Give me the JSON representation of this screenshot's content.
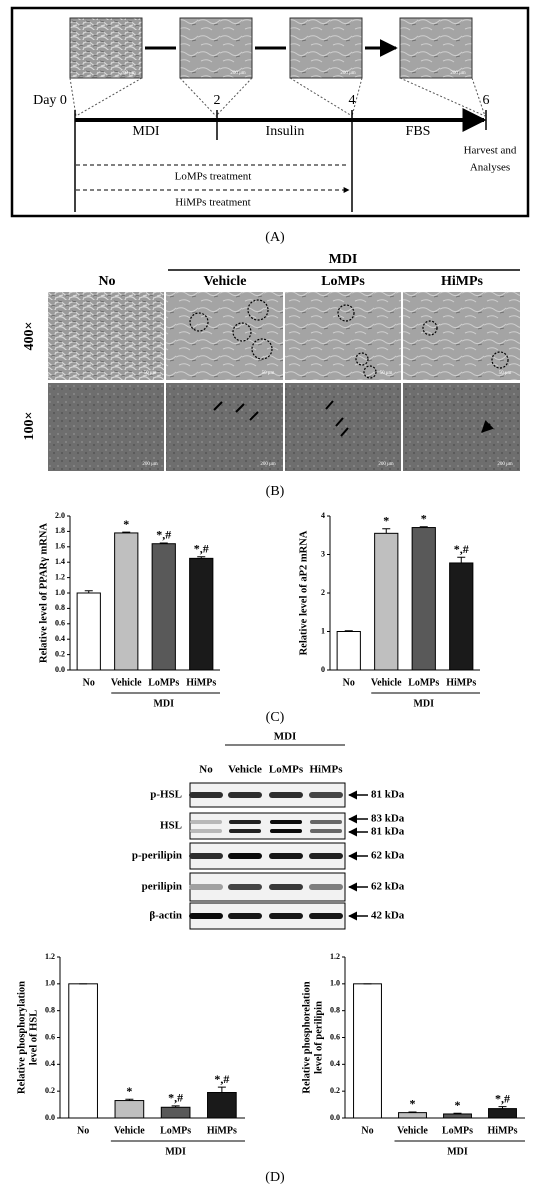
{
  "panel_a": {
    "label": "(A)",
    "day_labels": [
      "Day 0",
      "2",
      "4",
      "6"
    ],
    "phases": [
      "MDI",
      "Insulin",
      "FBS"
    ],
    "harvest": [
      "Harvest and",
      "Analyses"
    ],
    "treatments": [
      "LoMPs treatment",
      "HiMPs treatment"
    ],
    "scale_bar": "200 μm"
  },
  "panel_b": {
    "label": "(B)",
    "group": "MDI",
    "columns": [
      "No",
      "Vehicle",
      "LoMPs",
      "HiMPs"
    ],
    "rows": [
      "400×",
      "100×"
    ],
    "scale_bars": [
      "50 μm",
      "200 μm"
    ]
  },
  "panel_c": {
    "label": "(C)"
  },
  "panel_d": {
    "label": "(D)",
    "group": "MDI",
    "lanes": [
      "No",
      "Vehicle",
      "LoMPs",
      "HiMPs"
    ],
    "proteins": [
      "p-HSL",
      "HSL",
      "p-perilipin",
      "perilipin",
      "β-actin"
    ],
    "sizes": [
      [
        "81 kDa"
      ],
      [
        "83 kDa",
        "81 kDa"
      ],
      [
        "62 kDa"
      ],
      [
        "62 kDa"
      ],
      [
        "42 kDa"
      ]
    ]
  },
  "chart_data": [
    {
      "type": "bar",
      "ylabel": [
        "Relative level of PPARγ mRNA"
      ],
      "categories": [
        "No",
        "Vehicle",
        "LoMPs",
        "HiMPs"
      ],
      "group_label": "MDI",
      "values": [
        1.0,
        1.78,
        1.64,
        1.45
      ],
      "errors": [
        0.03,
        0.01,
        0.01,
        0.02
      ],
      "annotations": [
        null,
        "*",
        "*,#",
        "*,#"
      ],
      "colors": [
        "#ffffff",
        "#bfbfbf",
        "#595959",
        "#1a1a1a"
      ],
      "ylim": [
        0,
        2.0
      ],
      "yticks": [
        {
          "value": 0,
          "label": "0.0"
        },
        0.2,
        0.4,
        0.6,
        0.8,
        {
          "value": 1.0,
          "label": "1.0"
        },
        1.2,
        1.4,
        1.6,
        1.8,
        {
          "value": 2.0,
          "label": "2.0"
        }
      ]
    },
    {
      "type": "bar",
      "ylabel": [
        "Relative level of aP2 mRNA"
      ],
      "categories": [
        "No",
        "Vehicle",
        "LoMPs",
        "HiMPs"
      ],
      "group_label": "MDI",
      "values": [
        1.0,
        3.55,
        3.7,
        2.78
      ],
      "errors": [
        0.02,
        0.12,
        0.02,
        0.15
      ],
      "annotations": [
        null,
        "*",
        "*",
        "*,#"
      ],
      "colors": [
        "#ffffff",
        "#bfbfbf",
        "#595959",
        "#1a1a1a"
      ],
      "ylim": [
        0,
        4
      ],
      "yticks": [
        0,
        1,
        2,
        3,
        4
      ]
    },
    {
      "type": "bar",
      "ylabel": [
        "Relative phosphorylation",
        "level of HSL"
      ],
      "categories": [
        "No",
        "Vehicle",
        "LoMPs",
        "HiMPs"
      ],
      "group_label": "MDI",
      "values": [
        1.0,
        0.13,
        0.08,
        0.19
      ],
      "errors": [
        0,
        0.01,
        0.01,
        0.04
      ],
      "annotations": [
        null,
        "*",
        "*,#",
        "*,#"
      ],
      "colors": [
        "#ffffff",
        "#bfbfbf",
        "#595959",
        "#1a1a1a"
      ],
      "ylim": [
        0,
        1.2
      ],
      "yticks": [
        {
          "value": 0,
          "label": "0.0"
        },
        0.2,
        0.4,
        0.6,
        0.8,
        {
          "value": 1.0,
          "label": "1.0"
        },
        1.2
      ]
    },
    {
      "type": "bar",
      "ylabel": [
        "Relative phosphorelation",
        "level of perilipin"
      ],
      "categories": [
        "No",
        "Vehicle",
        "LoMPs",
        "HiMPs"
      ],
      "group_label": "MDI",
      "values": [
        1.0,
        0.04,
        0.03,
        0.07
      ],
      "errors": [
        0,
        0.005,
        0.005,
        0.015
      ],
      "annotations": [
        null,
        "*",
        "*",
        "*,#"
      ],
      "colors": [
        "#ffffff",
        "#bfbfbf",
        "#595959",
        "#1a1a1a"
      ],
      "ylim": [
        0,
        1.2
      ],
      "yticks": [
        {
          "value": 0,
          "label": "0.0"
        },
        0.2,
        0.4,
        0.6,
        0.8,
        {
          "value": 1.0,
          "label": "1.0"
        },
        1.2
      ]
    }
  ]
}
